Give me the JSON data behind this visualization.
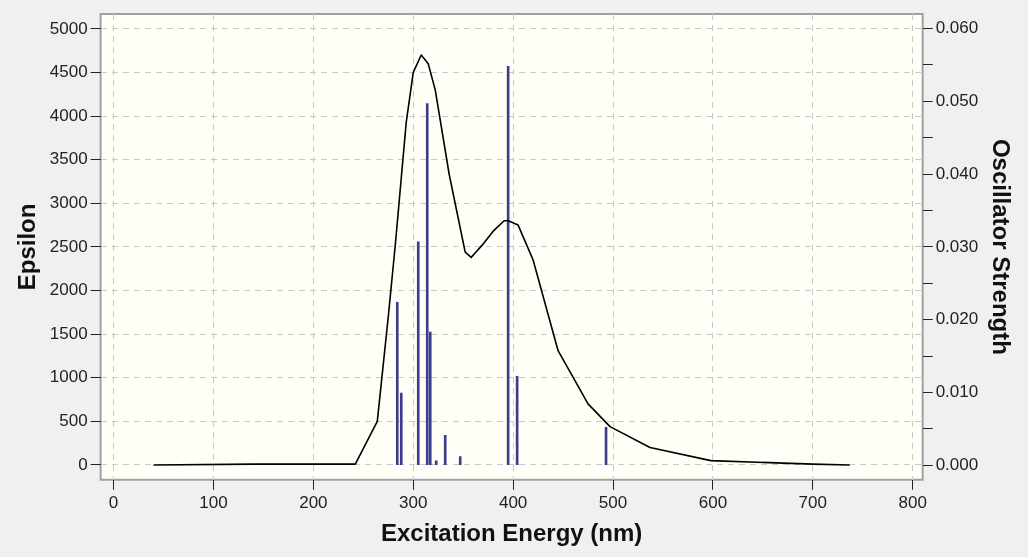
{
  "chart_data": {
    "type": "line",
    "xlabel": "Excitation Energy (nm)",
    "ylabel": "Epsilon",
    "y2label": "Oscillator Strength",
    "xlim": [
      -13,
      810
    ],
    "xticks": [
      0,
      100,
      200,
      300,
      400,
      500,
      600,
      700,
      800
    ],
    "ylim": [
      -170,
      5170
    ],
    "yticks": [
      0,
      500,
      1000,
      1500,
      2000,
      2500,
      3000,
      3500,
      4000,
      4500,
      5000
    ],
    "y2lim": [
      -0.002,
      0.062
    ],
    "y2ticks": [
      {
        "value": 0,
        "label": "0.000"
      },
      {
        "value": 0.005,
        "label": null
      },
      {
        "value": 0.01,
        "label": "0.010"
      },
      {
        "value": 0.015,
        "label": null
      },
      {
        "value": 0.02,
        "label": "0.020"
      },
      {
        "value": 0.025,
        "label": null
      },
      {
        "value": 0.03,
        "label": "0.030"
      },
      {
        "value": 0.035,
        "label": null
      },
      {
        "value": 0.04,
        "label": "0.040"
      },
      {
        "value": 0.045,
        "label": null
      },
      {
        "value": 0.05,
        "label": "0.050"
      },
      {
        "value": 0.055,
        "label": null
      },
      {
        "value": 0.06,
        "label": "0.060"
      }
    ],
    "grid": true,
    "legend": false,
    "marker": "none",
    "line_style": "solid",
    "series": [
      {
        "color": "#000000",
        "x": [
          40,
          140,
          242,
          264,
          275,
          282,
          293,
          300,
          308,
          315,
          322,
          336,
          352,
          358,
          369,
          380,
          391,
          395,
          405,
          420,
          445,
          475,
          497,
          537,
          598,
          700,
          737
        ],
        "values": [
          0,
          10,
          10,
          500,
          1700,
          2520,
          3930,
          4500,
          4700,
          4600,
          4300,
          3330,
          2440,
          2380,
          2520,
          2680,
          2800,
          2800,
          2750,
          2350,
          1310,
          700,
          440,
          200,
          50,
          10,
          0
        ]
      },
      {
        "type": "bar",
        "axis": "y2",
        "color": "#3c3c8c",
        "x": [
          284,
          288,
          305,
          313,
          314,
          317,
          323,
          332,
          347,
          395,
          404,
          493
        ],
        "values": [
          0.0224,
          0.0099,
          0.0307,
          null,
          0.0497,
          0.0183,
          0.0006,
          0.0041,
          0.0012,
          0.0548,
          0.0122,
          0.0052
        ]
      }
    ]
  }
}
